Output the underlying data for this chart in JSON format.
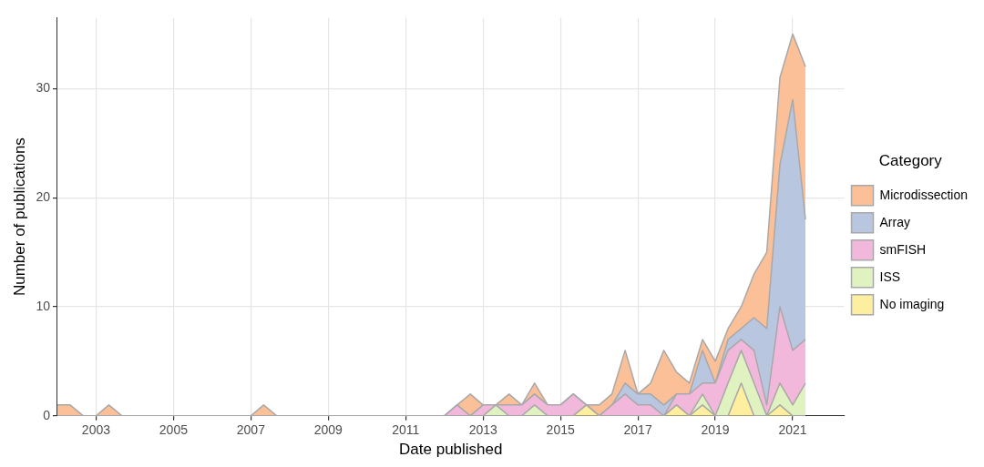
{
  "chart_data": {
    "type": "area",
    "stacked": true,
    "xlabel": "Date published",
    "ylabel": "Number of publications",
    "legend_title": "Category",
    "legend": "right",
    "grid": true,
    "xlim": [
      2002,
      2022.33
    ],
    "xticks": [
      2003,
      2005,
      2007,
      2009,
      2011,
      2013,
      2015,
      2017,
      2019,
      2021
    ],
    "ylim": [
      0,
      36.5
    ],
    "yticks": [
      0,
      10,
      20,
      30
    ],
    "x": [
      2002,
      2002.33,
      2002.67,
      2003,
      2003.33,
      2003.67,
      2004,
      2004.33,
      2004.67,
      2005,
      2005.33,
      2005.67,
      2006,
      2006.33,
      2006.67,
      2007,
      2007.33,
      2007.67,
      2008,
      2008.33,
      2008.67,
      2009,
      2009.33,
      2009.67,
      2010,
      2010.33,
      2010.67,
      2011,
      2011.33,
      2011.67,
      2012,
      2012.33,
      2012.67,
      2013,
      2013.33,
      2013.67,
      2014,
      2014.33,
      2014.67,
      2015,
      2015.33,
      2015.67,
      2016,
      2016.33,
      2016.67,
      2017,
      2017.33,
      2017.67,
      2018,
      2018.33,
      2018.67,
      2019,
      2019.33,
      2019.67,
      2020,
      2020.33,
      2020.67,
      2021,
      2021.33
    ],
    "series": [
      {
        "name": "No imaging",
        "color": "#fdeea0",
        "values": [
          0,
          0,
          0,
          0,
          0,
          0,
          0,
          0,
          0,
          0,
          0,
          0,
          0,
          0,
          0,
          0,
          0,
          0,
          0,
          0,
          0,
          0,
          0,
          0,
          0,
          0,
          0,
          0,
          0,
          0,
          0,
          0,
          0,
          0,
          0,
          0,
          0,
          0,
          0,
          0,
          0,
          1,
          0,
          0,
          0,
          0,
          0,
          0,
          1,
          0,
          1,
          0,
          0,
          3,
          0,
          0,
          1,
          0,
          0
        ]
      },
      {
        "name": "ISS",
        "color": "#dff2c0",
        "values": [
          0,
          0,
          0,
          0,
          0,
          0,
          0,
          0,
          0,
          0,
          0,
          0,
          0,
          0,
          0,
          0,
          0,
          0,
          0,
          0,
          0,
          0,
          0,
          0,
          0,
          0,
          0,
          0,
          0,
          0,
          0,
          0,
          0,
          0,
          1,
          0,
          0,
          1,
          0,
          0,
          0,
          0,
          0,
          0,
          0,
          0,
          0,
          0,
          0,
          0,
          1,
          0,
          3,
          3,
          3,
          0,
          2,
          1,
          3
        ]
      },
      {
        "name": "smFISH",
        "color": "#f2b8dc",
        "values": [
          0,
          0,
          0,
          0,
          0,
          0,
          0,
          0,
          0,
          0,
          0,
          0,
          0,
          0,
          0,
          0,
          0,
          0,
          0,
          0,
          0,
          0,
          0,
          0,
          0,
          0,
          0,
          0,
          0,
          0,
          0,
          1,
          0,
          1,
          0,
          1,
          1,
          1,
          1,
          1,
          2,
          0,
          0,
          1,
          2,
          1,
          1,
          0,
          1,
          2,
          1,
          3,
          3,
          1,
          3,
          1,
          7,
          5,
          4
        ]
      },
      {
        "name": "Array",
        "color": "#b9c6e0",
        "values": [
          0,
          0,
          0,
          0,
          0,
          0,
          0,
          0,
          0,
          0,
          0,
          0,
          0,
          0,
          0,
          0,
          0,
          0,
          0,
          0,
          0,
          0,
          0,
          0,
          0,
          0,
          0,
          0,
          0,
          0,
          0,
          0,
          0,
          0,
          0,
          0,
          0,
          0,
          0,
          0,
          0,
          0,
          0,
          0,
          1,
          1,
          1,
          1,
          0,
          0,
          3,
          0,
          1,
          1,
          3,
          7,
          13,
          23,
          11
        ]
      },
      {
        "name": "Microdissection",
        "color": "#fbc097",
        "values": [
          1,
          1,
          0,
          0,
          1,
          0,
          0,
          0,
          0,
          0,
          0,
          0,
          0,
          0,
          0,
          0,
          1,
          0,
          0,
          0,
          0,
          0,
          0,
          0,
          0,
          0,
          0,
          0,
          0,
          0,
          0,
          0,
          2,
          0,
          0,
          1,
          0,
          1,
          0,
          0,
          0,
          0,
          1,
          1,
          3,
          0,
          1,
          5,
          2,
          1,
          1,
          2,
          1,
          2,
          4,
          7,
          8,
          6,
          14
        ]
      }
    ]
  }
}
